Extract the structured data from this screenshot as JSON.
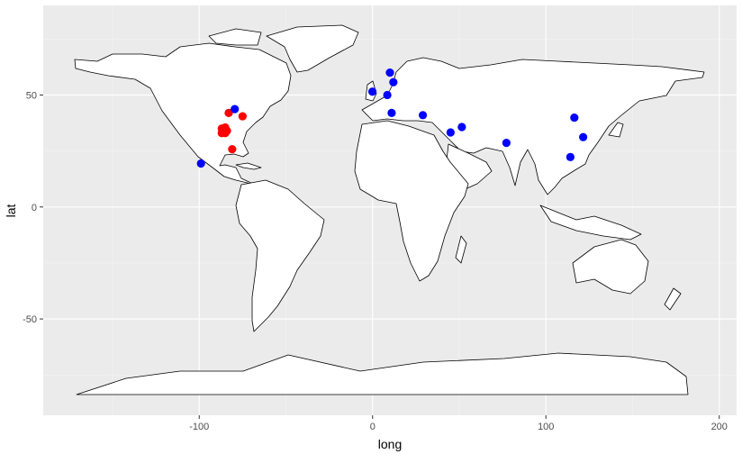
{
  "chart_data": {
    "type": "scatter",
    "title": "",
    "xlabel": "long",
    "ylabel": "lat",
    "xlim": [
      -190,
      210
    ],
    "ylim": [
      -93,
      90
    ],
    "x_ticks": [
      -100,
      0,
      100,
      200
    ],
    "y_ticks": [
      -50,
      0,
      50
    ],
    "x_tick_labels": [
      "-100",
      "0",
      "100",
      "200"
    ],
    "y_tick_labels": [
      "-50",
      "0",
      "50"
    ],
    "grid": true,
    "legend": "none",
    "background": "map of world country outlines",
    "series": [
      {
        "color": "#ff0000",
        "points": [
          {
            "x": -87,
            "y": 35
          },
          {
            "x": -86,
            "y": 33.5
          },
          {
            "x": -85,
            "y": 35.5
          },
          {
            "x": -84,
            "y": 34
          },
          {
            "x": -87,
            "y": 33
          },
          {
            "x": -85,
            "y": 33
          },
          {
            "x": -83,
            "y": 42
          },
          {
            "x": -75,
            "y": 40.5
          },
          {
            "x": -81,
            "y": 25.8
          }
        ]
      },
      {
        "color": "#0000ff",
        "points": [
          {
            "x": -99,
            "y": 19.4
          },
          {
            "x": -79.5,
            "y": 43.7
          },
          {
            "x": -0.1,
            "y": 51.5
          },
          {
            "x": 8.5,
            "y": 50
          },
          {
            "x": 10,
            "y": 60
          },
          {
            "x": 12,
            "y": 55.7
          },
          {
            "x": 11,
            "y": 42
          },
          {
            "x": 29,
            "y": 41
          },
          {
            "x": 45,
            "y": 33.3
          },
          {
            "x": 51.5,
            "y": 35.7
          },
          {
            "x": 77.2,
            "y": 28.6
          },
          {
            "x": 116.4,
            "y": 39.9
          },
          {
            "x": 121.5,
            "y": 31.2
          },
          {
            "x": 114.1,
            "y": 22.3
          }
        ]
      }
    ]
  },
  "colors": {
    "panel_background": "#ebebeb",
    "grid_major": "#ffffff",
    "grid_minor": "#f4f4f4",
    "land_fill": "#ffffff",
    "land_outline": "#000000"
  }
}
